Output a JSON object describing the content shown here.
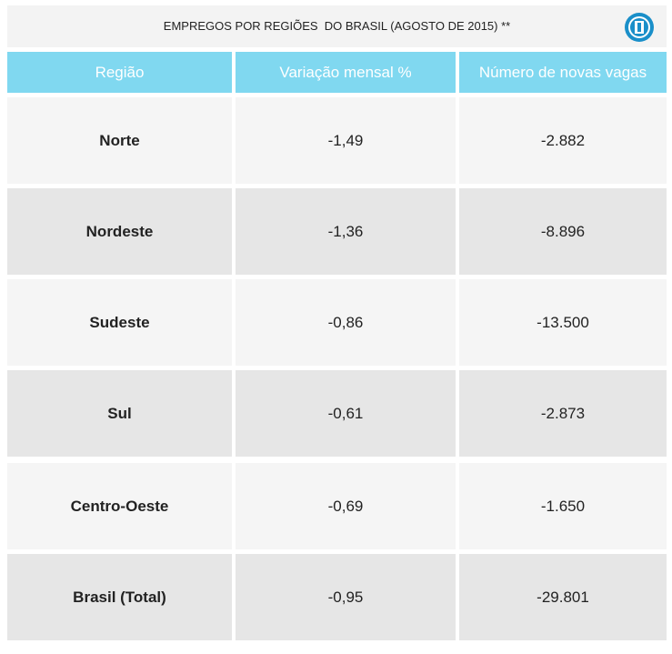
{
  "header": {
    "title": "EMPREGOS POR REGIÕES  DO BRASIL (AGOSTO DE 2015) **"
  },
  "table": {
    "columns": [
      "Região",
      "Variação mensal %",
      "Número de novas vagas"
    ],
    "rows": [
      [
        "Norte",
        "-1,49",
        "-2.882"
      ],
      [
        "Nordeste",
        "-1,36",
        "-8.896"
      ],
      [
        "Sudeste",
        "-0,86",
        "-13.500"
      ],
      [
        "Sul",
        "-0,61",
        "-2.873"
      ],
      [
        "Centro-Oeste",
        "-0,69",
        "-1.650"
      ],
      [
        "Brasil (Total)",
        "-0,95",
        "-29.801"
      ]
    ]
  }
}
